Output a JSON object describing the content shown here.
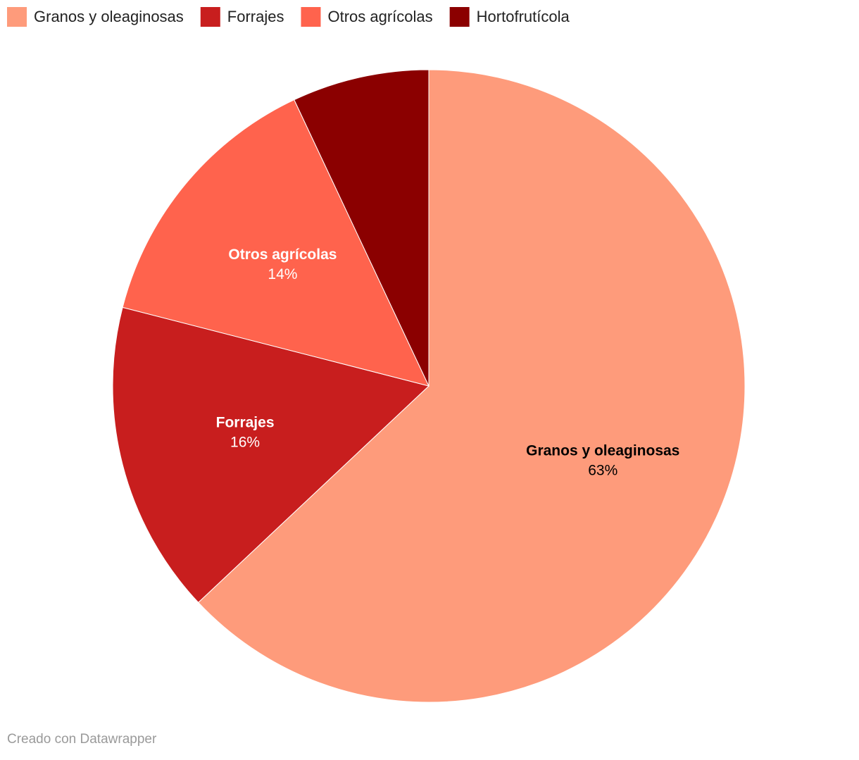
{
  "chart_data": {
    "type": "pie",
    "categories": [
      "Granos y oleaginosas",
      "Forrajes",
      "Otros agrícolas",
      "Hortofrutícola"
    ],
    "values": [
      63,
      16,
      14,
      7
    ],
    "value_labels": [
      "63%",
      "16%",
      "14%",
      null
    ],
    "colors": [
      "#fe9b7b",
      "#c81e1e",
      "#ff634d",
      "#8b0000"
    ],
    "legend": "top",
    "footer": "Creado con Datawrapper"
  }
}
